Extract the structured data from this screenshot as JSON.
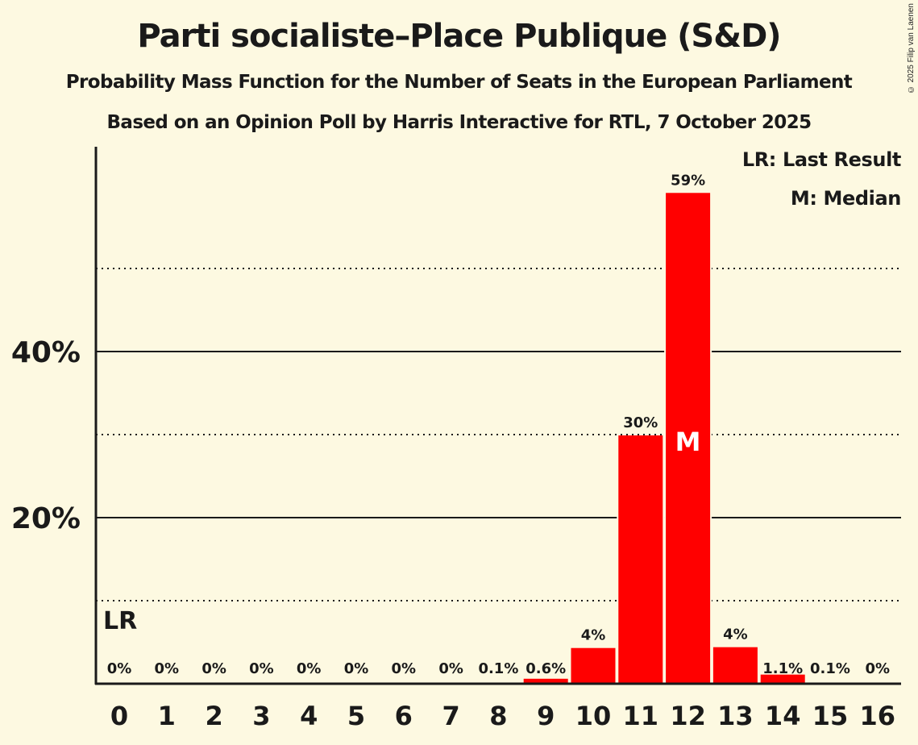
{
  "header": {
    "title": "Parti socialiste–Place Publique (S&D)",
    "subtitle": "Probability Mass Function for the Number of Seats in the European Parliament",
    "subtitle2": "Based on an Opinion Poll by Harris Interactive for RTL, 7 October 2025",
    "copyright": "© 2025 Filip van Laenen"
  },
  "legend": {
    "last_result": "LR: Last Result",
    "median": "M: Median"
  },
  "colors": {
    "background": "#fdf9e1",
    "bar": "#ff0000",
    "text": "#1a1a1a",
    "median_marker": "#ffffff"
  },
  "chart_data": {
    "type": "bar",
    "title": "Parti socialiste–Place Publique (S&D)",
    "subtitle": "Probability Mass Function for the Number of Seats in the European Parliament",
    "caption": "Based on an Opinion Poll by Harris Interactive for RTL, 7 October 2025",
    "xlabel": "",
    "ylabel": "",
    "categories": [
      "0",
      "1",
      "2",
      "3",
      "4",
      "5",
      "6",
      "7",
      "8",
      "9",
      "10",
      "11",
      "12",
      "13",
      "14",
      "15",
      "16"
    ],
    "values": [
      0,
      0,
      0,
      0,
      0,
      0,
      0,
      0,
      0.1,
      0.6,
      4.3,
      29.9,
      59.1,
      4.4,
      1.1,
      0.1,
      0
    ],
    "value_labels": [
      "0%",
      "0%",
      "0%",
      "0%",
      "0%",
      "0%",
      "0%",
      "0%",
      "0.1%",
      "0.6%",
      "4%",
      "30%",
      "59%",
      "4%",
      "1.1%",
      "0.1%",
      "0%"
    ],
    "ylim": [
      0,
      64
    ],
    "yticks": [
      {
        "value": 20,
        "label": "20%",
        "style": "solid"
      },
      {
        "value": 40,
        "label": "40%",
        "style": "solid"
      }
    ],
    "minor_gridlines": [
      10,
      30,
      50
    ],
    "grid": true,
    "annotations": [
      {
        "category": "0",
        "text": "LR",
        "meaning": "Last Result"
      },
      {
        "category": "12",
        "text": "M",
        "meaning": "Median"
      }
    ],
    "legend": [
      "LR: Last Result",
      "M: Median"
    ],
    "legend_position": "top-right"
  }
}
